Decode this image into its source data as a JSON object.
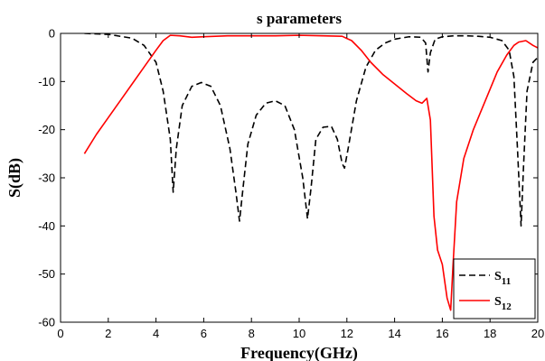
{
  "chart_data": {
    "type": "line",
    "title": "s parameters",
    "xlabel": "Frequency(GHz)",
    "ylabel": "S(dB)",
    "xlim": [
      0,
      20
    ],
    "ylim": [
      -60,
      0
    ],
    "xticks": [
      0,
      2,
      4,
      6,
      8,
      10,
      12,
      14,
      16,
      18,
      20
    ],
    "yticks": [
      0,
      -10,
      -20,
      -30,
      -40,
      -50,
      -60
    ],
    "grid": false,
    "legend_position": "bottom-right",
    "series": [
      {
        "name": "S11",
        "name_base": "S",
        "name_sub": "11",
        "color": "#000000",
        "dash": "dashed",
        "x": [
          1.0,
          2.0,
          3.0,
          3.5,
          4.0,
          4.3,
          4.6,
          4.72,
          4.85,
          5.1,
          5.5,
          5.9,
          6.3,
          6.7,
          7.1,
          7.35,
          7.5,
          7.65,
          7.85,
          8.2,
          8.6,
          9.0,
          9.4,
          9.8,
          10.15,
          10.35,
          10.5,
          10.7,
          11.0,
          11.35,
          11.6,
          11.8,
          11.9,
          12.05,
          12.4,
          12.8,
          13.2,
          13.6,
          14.0,
          14.6,
          15.1,
          15.3,
          15.4,
          15.5,
          15.7,
          16.0,
          16.5,
          17.0,
          17.5,
          18.0,
          18.5,
          18.8,
          19.0,
          19.15,
          19.3,
          19.4,
          19.55,
          19.8,
          20.0
        ],
        "y": [
          0.0,
          -0.2,
          -1.0,
          -2.5,
          -6.0,
          -12.0,
          -22.0,
          -33.0,
          -24.0,
          -15.0,
          -11.0,
          -10.2,
          -11.0,
          -15.0,
          -24.0,
          -33.0,
          -39.0,
          -32.0,
          -23.0,
          -17.0,
          -14.5,
          -14.0,
          -15.0,
          -20.0,
          -30.0,
          -38.5,
          -32.0,
          -22.0,
          -19.5,
          -19.3,
          -22.0,
          -27.0,
          -28.0,
          -24.0,
          -14.0,
          -7.0,
          -3.5,
          -2.0,
          -1.2,
          -0.7,
          -0.8,
          -2.0,
          -8.0,
          -4.0,
          -1.2,
          -0.7,
          -0.5,
          -0.5,
          -0.6,
          -0.8,
          -1.5,
          -3.5,
          -9.0,
          -24.0,
          -40.0,
          -28.0,
          -12.0,
          -6.0,
          -5.0
        ]
      },
      {
        "name": "S12",
        "name_base": "S",
        "name_sub": "12",
        "color": "#ff0000",
        "dash": "solid",
        "x": [
          1.0,
          1.5,
          2.0,
          2.5,
          3.0,
          3.5,
          4.0,
          4.3,
          4.6,
          5.0,
          5.5,
          6.0,
          7.0,
          8.0,
          9.0,
          10.0,
          11.0,
          11.8,
          12.2,
          12.6,
          13.0,
          13.5,
          14.0,
          14.5,
          14.9,
          15.15,
          15.35,
          15.5,
          15.65,
          15.8,
          16.0,
          16.2,
          16.35,
          16.45,
          16.6,
          16.9,
          17.3,
          17.8,
          18.3,
          18.7,
          19.0,
          19.2,
          19.5,
          19.8,
          20.0
        ],
        "y": [
          -25.0,
          -21.0,
          -17.5,
          -14.0,
          -10.5,
          -7.0,
          -3.5,
          -1.5,
          -0.4,
          -0.5,
          -0.8,
          -0.7,
          -0.5,
          -0.5,
          -0.5,
          -0.4,
          -0.5,
          -0.6,
          -1.5,
          -3.5,
          -6.0,
          -8.5,
          -10.5,
          -12.5,
          -14.0,
          -14.5,
          -13.5,
          -18.0,
          -38.0,
          -45.0,
          -48.0,
          -55.0,
          -57.5,
          -48.0,
          -35.0,
          -26.0,
          -20.0,
          -14.0,
          -8.0,
          -4.5,
          -2.5,
          -1.8,
          -1.5,
          -2.5,
          -3.0
        ]
      }
    ]
  }
}
